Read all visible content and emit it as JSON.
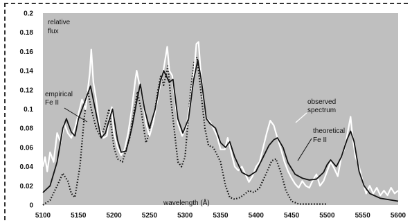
{
  "chart_data": {
    "type": "line",
    "title": "",
    "xlabel": "wavelength (Å)",
    "ylabel_lines": [
      "relative",
      "flux"
    ],
    "xlim": [
      5100,
      5600
    ],
    "ylim": [
      0,
      0.2
    ],
    "x_ticks": [
      5100,
      5150,
      5200,
      5250,
      5300,
      5350,
      5400,
      5450,
      5500,
      5550,
      5600
    ],
    "y_ticks": [
      "0",
      "0.02",
      "0.04",
      "0.06",
      "0.08",
      "0.1",
      "0.12",
      "0.14",
      "0.16",
      "0.18",
      "0.2"
    ],
    "grid": false,
    "plot_background": "#bfbfbf",
    "annotations": {
      "empirical": [
        "empirical",
        "Fe II"
      ],
      "observed": [
        "observed",
        "spectrum"
      ],
      "theoretical": [
        "theoretical",
        "Fe II"
      ]
    },
    "series": [
      {
        "style": "solid-black",
        "color": "#111111",
        "points": [
          [
            5100,
            0.013
          ],
          [
            5110,
            0.02
          ],
          [
            5120,
            0.045
          ],
          [
            5128,
            0.08
          ],
          [
            5133,
            0.09
          ],
          [
            5140,
            0.076
          ],
          [
            5145,
            0.072
          ],
          [
            5150,
            0.09
          ],
          [
            5160,
            0.11
          ],
          [
            5167,
            0.124
          ],
          [
            5175,
            0.095
          ],
          [
            5182,
            0.07
          ],
          [
            5188,
            0.075
          ],
          [
            5193,
            0.088
          ],
          [
            5198,
            0.1
          ],
          [
            5205,
            0.068
          ],
          [
            5210,
            0.055
          ],
          [
            5217,
            0.056
          ],
          [
            5225,
            0.08
          ],
          [
            5233,
            0.112
          ],
          [
            5237,
            0.126
          ],
          [
            5243,
            0.1
          ],
          [
            5250,
            0.08
          ],
          [
            5258,
            0.1
          ],
          [
            5265,
            0.128
          ],
          [
            5270,
            0.14
          ],
          [
            5278,
            0.128
          ],
          [
            5283,
            0.131
          ],
          [
            5290,
            0.09
          ],
          [
            5297,
            0.075
          ],
          [
            5305,
            0.09
          ],
          [
            5312,
            0.13
          ],
          [
            5318,
            0.151
          ],
          [
            5323,
            0.13
          ],
          [
            5330,
            0.09
          ],
          [
            5335,
            0.085
          ],
          [
            5343,
            0.08
          ],
          [
            5350,
            0.065
          ],
          [
            5357,
            0.06
          ],
          [
            5363,
            0.066
          ],
          [
            5370,
            0.05
          ],
          [
            5380,
            0.034
          ],
          [
            5390,
            0.03
          ],
          [
            5400,
            0.035
          ],
          [
            5410,
            0.05
          ],
          [
            5418,
            0.062
          ],
          [
            5425,
            0.068
          ],
          [
            5430,
            0.07
          ],
          [
            5438,
            0.06
          ],
          [
            5445,
            0.044
          ],
          [
            5455,
            0.032
          ],
          [
            5465,
            0.028
          ],
          [
            5475,
            0.026
          ],
          [
            5485,
            0.027
          ],
          [
            5495,
            0.034
          ],
          [
            5500,
            0.042
          ],
          [
            5505,
            0.047
          ],
          [
            5513,
            0.04
          ],
          [
            5520,
            0.05
          ],
          [
            5528,
            0.068
          ],
          [
            5533,
            0.077
          ],
          [
            5538,
            0.066
          ],
          [
            5545,
            0.035
          ],
          [
            5552,
            0.02
          ],
          [
            5560,
            0.012
          ],
          [
            5575,
            0.007
          ],
          [
            5600,
            0.004
          ]
        ]
      },
      {
        "style": "dotted-black",
        "color": "#111111",
        "points": [
          [
            5100,
            0.0
          ],
          [
            5110,
            0.005
          ],
          [
            5120,
            0.02
          ],
          [
            5128,
            0.033
          ],
          [
            5135,
            0.025
          ],
          [
            5140,
            0.012
          ],
          [
            5145,
            0.008
          ],
          [
            5152,
            0.04
          ],
          [
            5158,
            0.09
          ],
          [
            5163,
            0.12
          ],
          [
            5168,
            0.1
          ],
          [
            5175,
            0.08
          ],
          [
            5182,
            0.07
          ],
          [
            5188,
            0.085
          ],
          [
            5193,
            0.1
          ],
          [
            5200,
            0.06
          ],
          [
            5205,
            0.048
          ],
          [
            5212,
            0.045
          ],
          [
            5222,
            0.07
          ],
          [
            5233,
            0.118
          ],
          [
            5238,
            0.1
          ],
          [
            5245,
            0.065
          ],
          [
            5255,
            0.085
          ],
          [
            5262,
            0.12
          ],
          [
            5266,
            0.135
          ],
          [
            5270,
            0.125
          ],
          [
            5276,
            0.145
          ],
          [
            5280,
            0.11
          ],
          [
            5290,
            0.045
          ],
          [
            5295,
            0.04
          ],
          [
            5300,
            0.05
          ],
          [
            5308,
            0.12
          ],
          [
            5313,
            0.15
          ],
          [
            5317,
            0.154
          ],
          [
            5322,
            0.12
          ],
          [
            5328,
            0.08
          ],
          [
            5333,
            0.062
          ],
          [
            5340,
            0.06
          ],
          [
            5350,
            0.045
          ],
          [
            5357,
            0.02
          ],
          [
            5363,
            0.008
          ],
          [
            5370,
            0.006
          ],
          [
            5378,
            0.008
          ],
          [
            5385,
            0.012
          ],
          [
            5390,
            0.015
          ],
          [
            5397,
            0.013
          ],
          [
            5405,
            0.018
          ],
          [
            5415,
            0.034
          ],
          [
            5422,
            0.046
          ],
          [
            5428,
            0.048
          ],
          [
            5435,
            0.034
          ],
          [
            5442,
            0.015
          ],
          [
            5450,
            0.004
          ],
          [
            5460,
            0.001
          ],
          [
            5480,
            0.001
          ],
          [
            5500,
            0.001
          ]
        ]
      },
      {
        "style": "solid-white",
        "color": "#ffffff",
        "points": [
          [
            5100,
            0.04
          ],
          [
            5103,
            0.05
          ],
          [
            5106,
            0.035
          ],
          [
            5110,
            0.055
          ],
          [
            5115,
            0.045
          ],
          [
            5120,
            0.075
          ],
          [
            5125,
            0.065
          ],
          [
            5130,
            0.085
          ],
          [
            5135,
            0.075
          ],
          [
            5140,
            0.07
          ],
          [
            5145,
            0.08
          ],
          [
            5150,
            0.095
          ],
          [
            5155,
            0.11
          ],
          [
            5160,
            0.1
          ],
          [
            5166,
            0.138
          ],
          [
            5168,
            0.162
          ],
          [
            5171,
            0.128
          ],
          [
            5175,
            0.11
          ],
          [
            5180,
            0.08
          ],
          [
            5185,
            0.07
          ],
          [
            5190,
            0.072
          ],
          [
            5193,
            0.09
          ],
          [
            5197,
            0.102
          ],
          [
            5200,
            0.075
          ],
          [
            5205,
            0.06
          ],
          [
            5210,
            0.052
          ],
          [
            5215,
            0.058
          ],
          [
            5220,
            0.075
          ],
          [
            5225,
            0.1
          ],
          [
            5230,
            0.13
          ],
          [
            5232,
            0.14
          ],
          [
            5236,
            0.125
          ],
          [
            5240,
            0.115
          ],
          [
            5245,
            0.085
          ],
          [
            5250,
            0.072
          ],
          [
            5255,
            0.085
          ],
          [
            5260,
            0.105
          ],
          [
            5265,
            0.125
          ],
          [
            5270,
            0.142
          ],
          [
            5275,
            0.165
          ],
          [
            5278,
            0.14
          ],
          [
            5282,
            0.135
          ],
          [
            5286,
            0.11
          ],
          [
            5290,
            0.085
          ],
          [
            5296,
            0.072
          ],
          [
            5302,
            0.082
          ],
          [
            5308,
            0.11
          ],
          [
            5313,
            0.14
          ],
          [
            5316,
            0.168
          ],
          [
            5319,
            0.17
          ],
          [
            5322,
            0.14
          ],
          [
            5326,
            0.11
          ],
          [
            5330,
            0.09
          ],
          [
            5335,
            0.087
          ],
          [
            5340,
            0.08
          ],
          [
            5345,
            0.072
          ],
          [
            5350,
            0.058
          ],
          [
            5356,
            0.058
          ],
          [
            5360,
            0.07
          ],
          [
            5365,
            0.055
          ],
          [
            5370,
            0.04
          ],
          [
            5375,
            0.036
          ],
          [
            5380,
            0.04
          ],
          [
            5385,
            0.032
          ],
          [
            5390,
            0.024
          ],
          [
            5395,
            0.03
          ],
          [
            5400,
            0.04
          ],
          [
            5405,
            0.045
          ],
          [
            5410,
            0.06
          ],
          [
            5415,
            0.075
          ],
          [
            5420,
            0.088
          ],
          [
            5425,
            0.083
          ],
          [
            5430,
            0.07
          ],
          [
            5435,
            0.058
          ],
          [
            5440,
            0.045
          ],
          [
            5445,
            0.035
          ],
          [
            5450,
            0.028
          ],
          [
            5455,
            0.022
          ],
          [
            5460,
            0.018
          ],
          [
            5465,
            0.025
          ],
          [
            5470,
            0.02
          ],
          [
            5475,
            0.018
          ],
          [
            5480,
            0.026
          ],
          [
            5485,
            0.032
          ],
          [
            5490,
            0.02
          ],
          [
            5495,
            0.025
          ],
          [
            5500,
            0.035
          ],
          [
            5505,
            0.045
          ],
          [
            5510,
            0.038
          ],
          [
            5515,
            0.03
          ],
          [
            5520,
            0.05
          ],
          [
            5525,
            0.06
          ],
          [
            5530,
            0.08
          ],
          [
            5533,
            0.092
          ],
          [
            5536,
            0.07
          ],
          [
            5540,
            0.05
          ],
          [
            5545,
            0.04
          ],
          [
            5550,
            0.025
          ],
          [
            5555,
            0.012
          ],
          [
            5560,
            0.02
          ],
          [
            5565,
            0.012
          ],
          [
            5570,
            0.018
          ],
          [
            5575,
            0.01
          ],
          [
            5580,
            0.015
          ],
          [
            5585,
            0.01
          ],
          [
            5590,
            0.018
          ],
          [
            5595,
            0.012
          ],
          [
            5600,
            0.015
          ]
        ]
      }
    ]
  }
}
